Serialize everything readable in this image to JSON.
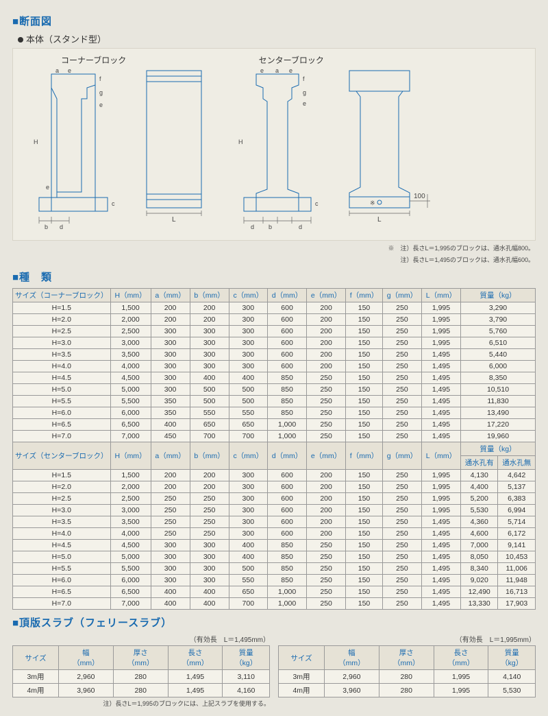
{
  "section_dan": "■断面図",
  "honbun": "本体（スタンド型）",
  "label_corner": "コーナーブロック",
  "label_center": "センターブロック",
  "dim100": "100",
  "dimsCorner": [
    "a",
    "e",
    "f",
    "g",
    "e",
    "H",
    "e",
    "c",
    "b",
    "d",
    "L"
  ],
  "dimsCenter": [
    "e",
    "a",
    "e",
    "f",
    "g",
    "e",
    "H",
    "c",
    "d",
    "b",
    "d",
    "L"
  ],
  "note1": "※　注）長さL＝1,995のブロックは、通水孔幅800。",
  "note2": "注）長さL＝1,495のブロックは、通水孔幅600。",
  "section_shu": "■種　類",
  "header_corner": [
    "サイズ（コーナーブロック）",
    "H（mm）",
    "a（mm）",
    "b（mm）",
    "c（mm）",
    "d（mm）",
    "e（mm）",
    "f（mm）",
    "g（mm）",
    "L（mm）",
    "質量（kg）"
  ],
  "rows_corner": [
    [
      "H=1.5",
      "1,500",
      "200",
      "200",
      "300",
      "600",
      "200",
      "150",
      "250",
      "1,995",
      "3,290"
    ],
    [
      "H=2.0",
      "2,000",
      "200",
      "200",
      "300",
      "600",
      "200",
      "150",
      "250",
      "1,995",
      "3,790"
    ],
    [
      "H=2.5",
      "2,500",
      "300",
      "300",
      "300",
      "600",
      "200",
      "150",
      "250",
      "1,995",
      "5,760"
    ],
    [
      "H=3.0",
      "3,000",
      "300",
      "300",
      "300",
      "600",
      "200",
      "150",
      "250",
      "1,995",
      "6,510"
    ],
    [
      "H=3.5",
      "3,500",
      "300",
      "300",
      "300",
      "600",
      "200",
      "150",
      "250",
      "1,495",
      "5,440"
    ],
    [
      "H=4.0",
      "4,000",
      "300",
      "300",
      "300",
      "600",
      "200",
      "150",
      "250",
      "1,495",
      "6,000"
    ],
    [
      "H=4.5",
      "4,500",
      "300",
      "400",
      "400",
      "850",
      "250",
      "150",
      "250",
      "1,495",
      "8,350"
    ],
    [
      "H=5.0",
      "5,000",
      "300",
      "500",
      "500",
      "850",
      "250",
      "150",
      "250",
      "1,495",
      "10,510"
    ],
    [
      "H=5.5",
      "5,500",
      "350",
      "500",
      "500",
      "850",
      "250",
      "150",
      "250",
      "1,495",
      "11,830"
    ],
    [
      "H=6.0",
      "6,000",
      "350",
      "550",
      "550",
      "850",
      "250",
      "150",
      "250",
      "1,495",
      "13,490"
    ],
    [
      "H=6.5",
      "6,500",
      "400",
      "650",
      "650",
      "1,000",
      "250",
      "150",
      "250",
      "1,495",
      "17,220"
    ],
    [
      "H=7.0",
      "7,000",
      "450",
      "700",
      "700",
      "1,000",
      "250",
      "150",
      "250",
      "1,495",
      "19,960"
    ]
  ],
  "header_center": [
    "サイズ（センターブロック）",
    "H（mm）",
    "a（mm）",
    "b（mm）",
    "c（mm）",
    "d（mm）",
    "e（mm）",
    "f（mm）",
    "g（mm）",
    "L（mm）"
  ],
  "header_center_m": "質量（kg）",
  "header_center_m1": "通水孔有",
  "header_center_m2": "通水孔無",
  "rows_center": [
    [
      "H=1.5",
      "1,500",
      "200",
      "200",
      "300",
      "600",
      "200",
      "150",
      "250",
      "1,995",
      "4,130",
      "4,642"
    ],
    [
      "H=2.0",
      "2,000",
      "200",
      "200",
      "300",
      "600",
      "200",
      "150",
      "250",
      "1,995",
      "4,400",
      "5,137"
    ],
    [
      "H=2.5",
      "2,500",
      "250",
      "250",
      "300",
      "600",
      "200",
      "150",
      "250",
      "1,995",
      "5,200",
      "6,383"
    ],
    [
      "H=3.0",
      "3,000",
      "250",
      "250",
      "300",
      "600",
      "200",
      "150",
      "250",
      "1,995",
      "5,530",
      "6,994"
    ],
    [
      "H=3.5",
      "3,500",
      "250",
      "250",
      "300",
      "600",
      "200",
      "150",
      "250",
      "1,495",
      "4,360",
      "5,714"
    ],
    [
      "H=4.0",
      "4,000",
      "250",
      "250",
      "300",
      "600",
      "200",
      "150",
      "250",
      "1,495",
      "4,600",
      "6,172"
    ],
    [
      "H=4.5",
      "4,500",
      "300",
      "300",
      "400",
      "850",
      "250",
      "150",
      "250",
      "1,495",
      "7,000",
      "9,141"
    ],
    [
      "H=5.0",
      "5,000",
      "300",
      "300",
      "400",
      "850",
      "250",
      "150",
      "250",
      "1,495",
      "8,050",
      "10,453"
    ],
    [
      "H=5.5",
      "5,500",
      "300",
      "300",
      "500",
      "850",
      "250",
      "150",
      "250",
      "1,495",
      "8,340",
      "11,006"
    ],
    [
      "H=6.0",
      "6,000",
      "300",
      "300",
      "550",
      "850",
      "250",
      "150",
      "250",
      "1,495",
      "9,020",
      "11,948"
    ],
    [
      "H=6.5",
      "6,500",
      "400",
      "400",
      "650",
      "1,000",
      "250",
      "150",
      "250",
      "1,495",
      "12,490",
      "16,713"
    ],
    [
      "H=7.0",
      "7,000",
      "400",
      "400",
      "700",
      "1,000",
      "250",
      "150",
      "250",
      "1,495",
      "13,330",
      "17,903"
    ]
  ],
  "section_slab": "■頂版スラブ（フェリースラブ）",
  "cap1": "（有効長　L＝1,495mm）",
  "cap2": "（有効長　L＝1,995mm）",
  "slab_hdr": [
    "サイズ",
    "幅\n（mm）",
    "厚さ\n（mm）",
    "長さ\n（mm）",
    "質量\n（kg）"
  ],
  "slab1": [
    [
      "3m用",
      "2,960",
      "280",
      "1,495",
      "3,110"
    ],
    [
      "4m用",
      "3,960",
      "280",
      "1,495",
      "4,160"
    ]
  ],
  "slab2": [
    [
      "3m用",
      "2,960",
      "280",
      "1,995",
      "4,140"
    ],
    [
      "4m用",
      "3,960",
      "280",
      "1,995",
      "5,530"
    ]
  ],
  "slab_note": "注）長さL＝1,995のブロックには、上記スラブを使用する。",
  "colors": {
    "blue": "#1a6bb0",
    "bg": "#e8e6de",
    "panel": "#efede4",
    "border": "#999",
    "thbg": "#e6e2d6"
  }
}
